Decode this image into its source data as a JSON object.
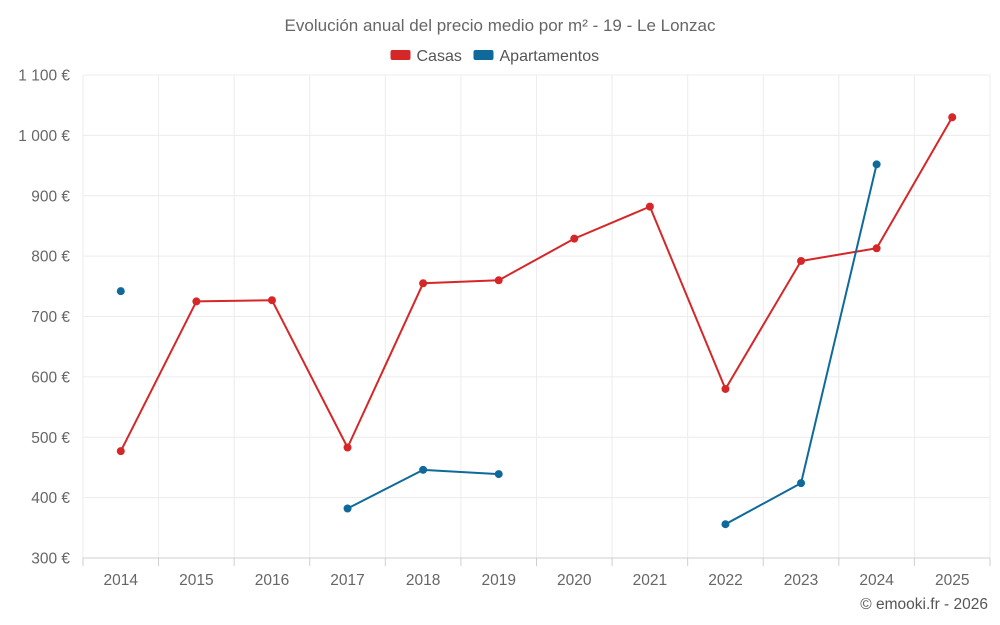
{
  "chart_data": {
    "type": "line",
    "title": "Evolución anual del precio medio por m² - 19 - Le Lonzac",
    "categories": [
      "2014",
      "2015",
      "2016",
      "2017",
      "2018",
      "2019",
      "2020",
      "2021",
      "2022",
      "2023",
      "2024",
      "2025"
    ],
    "ylim": [
      300,
      1100
    ],
    "yticks": [
      300,
      400,
      500,
      600,
      700,
      800,
      900,
      1000,
      1100
    ],
    "ytick_labels": [
      "300 €",
      "400 €",
      "500 €",
      "600 €",
      "700 €",
      "800 €",
      "900 €",
      "1 000 €",
      "1 100 €"
    ],
    "xlabel": "",
    "ylabel": "",
    "grid": true,
    "legend_position": "top-center",
    "series": [
      {
        "name": "Casas",
        "color": "#d62728",
        "values": [
          477,
          725,
          727,
          483,
          755,
          760,
          829,
          882,
          580,
          792,
          813,
          1030
        ]
      },
      {
        "name": "Apartamentos",
        "color": "#0f6a9b",
        "values": [
          742,
          null,
          null,
          382,
          446,
          439,
          null,
          null,
          356,
          424,
          952,
          null
        ]
      }
    ]
  },
  "credit": "© emooki.fr - 2026"
}
